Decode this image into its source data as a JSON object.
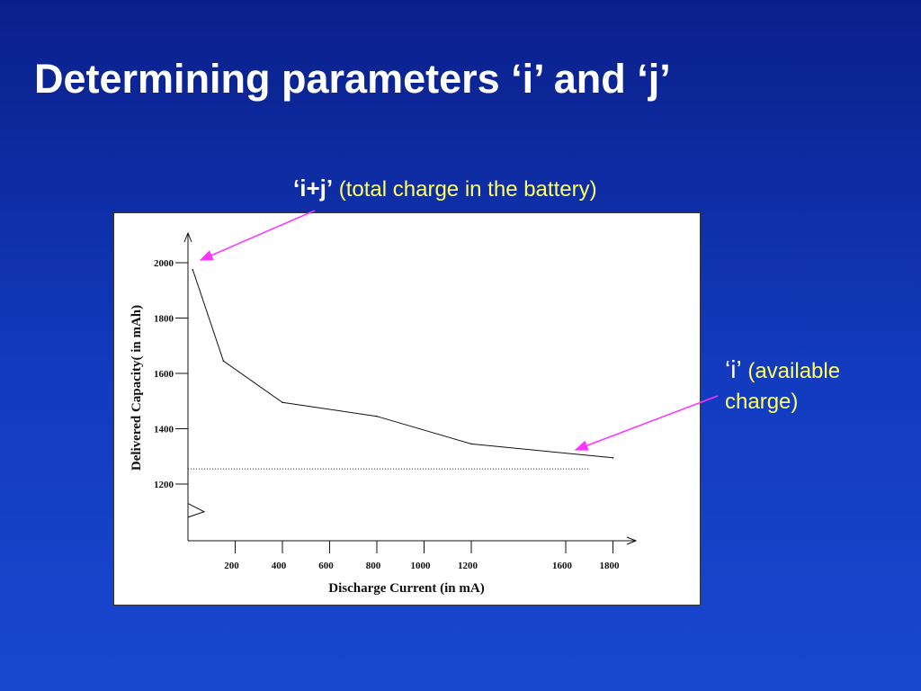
{
  "slide": {
    "title": "Determining parameters ‘i’ and ‘j’"
  },
  "annotations": {
    "top": {
      "key": "‘i+j’",
      "text": "(total charge in the battery)"
    },
    "right": {
      "key": "‘i’",
      "text": "(available charge)"
    },
    "arrow_color": "#ff33ff"
  },
  "colors": {
    "text_yellow": "#ffff66",
    "title_white": "#ffffff"
  },
  "chart_data": {
    "type": "line",
    "xlabel": "Discharge Current (in mA)",
    "ylabel": "Delivered Capacity( in mAh)",
    "x_ticks": [
      200,
      400,
      600,
      800,
      1000,
      1200,
      1600,
      1800
    ],
    "y_ticks": [
      1200,
      1400,
      1600,
      1800,
      2000
    ],
    "x": [
      20,
      150,
      400,
      800,
      1200,
      1800
    ],
    "series": [
      {
        "values": [
          1975,
          1645,
          1495,
          1445,
          1345,
          1295
        ]
      }
    ],
    "reference_line": {
      "y": 1255,
      "style": "dotted"
    },
    "xlim": [
      0,
      1900
    ],
    "ylim": [
      1050,
      2100
    ],
    "y_axis_break": true,
    "grid": false
  }
}
